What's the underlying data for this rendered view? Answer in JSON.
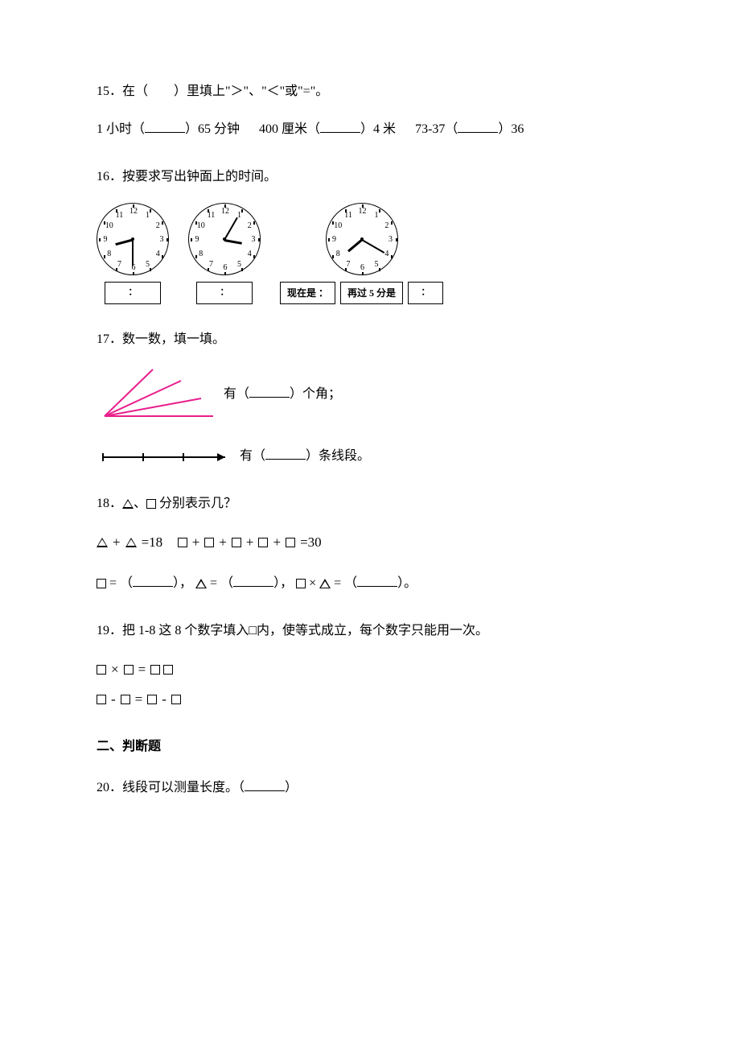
{
  "q15": {
    "num": "15．",
    "prompt": "在（　　）里填上\"＞\"、\"＜\"或\"=\"。",
    "items": [
      {
        "left": "1 小时（",
        "right": "）65 分钟"
      },
      {
        "left": "400 厘米（",
        "right": "）4 米"
      },
      {
        "left": "73-37（",
        "right": "）36"
      }
    ]
  },
  "q16": {
    "num": "16．",
    "prompt": "按要求写出钟面上的时间。",
    "clocks": [
      {
        "hour_angle": 255,
        "min_angle": 180
      },
      {
        "hour_angle": 100,
        "min_angle": 30
      },
      {
        "hour_angle": 230,
        "min_angle": 120
      }
    ],
    "box_glyph": "：",
    "label_now": "现在是",
    "label_after": "再过 5 分是"
  },
  "q17": {
    "num": "17．",
    "prompt": "数一数，填一填。",
    "angle_color": "#e91e8c",
    "answer_angles": {
      "left": "有（",
      "right": "）个角；"
    },
    "answer_segments": {
      "left": "有（",
      "right": "）条线段。"
    }
  },
  "q18": {
    "num": "18．",
    "prompt_pre": "△、□",
    "prompt_post": "分别表示几？",
    "eq1": "△+△=18",
    "eq2": "□+□+□+□+□=30",
    "ans_sq": {
      "pre": "□ = （",
      "post": "），"
    },
    "ans_tri": {
      "pre": "△ = （",
      "post": "），"
    },
    "ans_mul": {
      "pre": "□ × △ = （",
      "post": "）。"
    }
  },
  "q19": {
    "num": "19．",
    "prompt": "把 1-8 这 8 个数字填入□内，使等式成立，每个数字只能用一次。",
    "mult": "×",
    "eq": "=",
    "minus": "-"
  },
  "section2": "二、判断题",
  "q20": {
    "num": "20．",
    "prompt_pre": "线段可以测量长度。（",
    "prompt_post": "）"
  }
}
